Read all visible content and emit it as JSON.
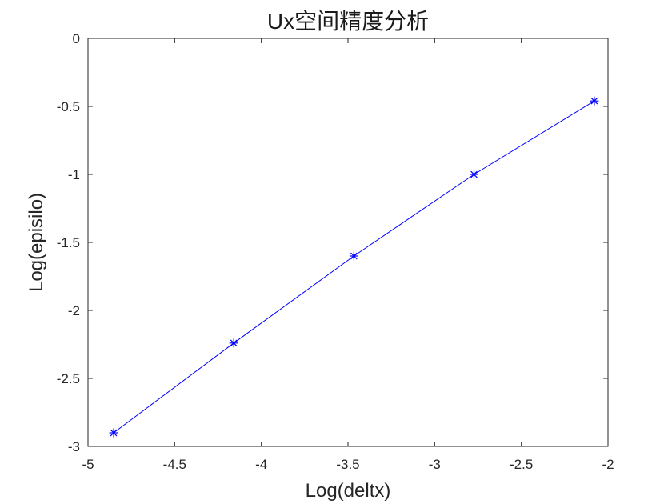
{
  "chart_data": {
    "type": "line",
    "title": "Ux空间精度分析",
    "xlabel": "Log(deltx)",
    "ylabel": "Log(episilo)",
    "xlim": [
      -5,
      -2
    ],
    "ylim": [
      -3,
      0
    ],
    "xticks": [
      -5,
      -4.5,
      -4,
      -3.5,
      -3,
      -2.5,
      -2
    ],
    "xtick_labels": [
      "-5",
      "-4.5",
      "-4",
      "-3.5",
      "-3",
      "-2.5",
      "-2"
    ],
    "yticks": [
      0,
      -0.5,
      -1,
      -1.5,
      -2,
      -2.5,
      -3
    ],
    "ytick_labels": [
      "0",
      "-0.5",
      "-1",
      "-1.5",
      "-2",
      "-2.5",
      "-3"
    ],
    "grid": false,
    "legend": "none",
    "series": [
      {
        "marker": "asterisk",
        "color": "#0000ff",
        "x": [
          -4.852,
          -4.159,
          -3.466,
          -2.773,
          -2.079
        ],
        "y": [
          -2.9,
          -2.24,
          -1.6,
          -1.0,
          -0.46
        ]
      }
    ]
  }
}
